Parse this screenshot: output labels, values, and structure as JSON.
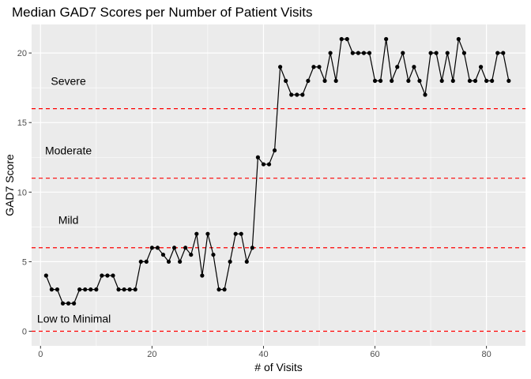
{
  "chart_data": {
    "type": "line",
    "title": "Median GAD7 Scores per Number of Patient Visits",
    "xlabel": "# of Visits",
    "ylabel": "GAD7 Score",
    "xlim": [
      -1.6,
      87
    ],
    "ylim": [
      -1.05,
      22.05
    ],
    "xticks": [
      0,
      20,
      40,
      60,
      80
    ],
    "yticks": [
      0,
      5,
      10,
      15,
      20
    ],
    "grid": true,
    "legend": "none",
    "colors": {
      "panel": "#ebebeb",
      "grid": "#ffffff",
      "line": "#000000",
      "points": "#000000",
      "threshold": "#ff0000"
    },
    "thresholds": [
      0,
      6,
      11,
      16
    ],
    "zone_labels": [
      {
        "text": "Severe",
        "x": 5,
        "y": 18
      },
      {
        "text": "Moderate",
        "x": 5,
        "y": 13
      },
      {
        "text": "Mild",
        "x": 5,
        "y": 8
      },
      {
        "text": "Low to Minimal",
        "x": 6,
        "y": 0.9
      }
    ],
    "series": [
      {
        "x": [
          1,
          2,
          3,
          4,
          5,
          6,
          7,
          8,
          9,
          10,
          11,
          12,
          13,
          14,
          15,
          16,
          17,
          18,
          19,
          20,
          21,
          22,
          23,
          24,
          25,
          26,
          27,
          28,
          29,
          30,
          31,
          32,
          33,
          34,
          35,
          36,
          37,
          38,
          39,
          40,
          41,
          42,
          43,
          44,
          45,
          46,
          47,
          48,
          49,
          50,
          51,
          52,
          53,
          54,
          55,
          56,
          57,
          58,
          59,
          60,
          61,
          62,
          63,
          64,
          65,
          66,
          67,
          68,
          69,
          70,
          71,
          72,
          73,
          74,
          75,
          76,
          77,
          78,
          79,
          80,
          81,
          82,
          83,
          84
        ],
        "y": [
          4,
          3,
          3,
          2,
          2,
          2,
          3,
          3,
          3,
          3,
          4,
          4,
          4,
          3,
          3,
          3,
          3,
          5,
          5,
          6,
          6,
          5.5,
          5,
          6,
          5,
          6,
          5.5,
          7,
          4,
          7,
          5.5,
          3,
          3,
          5,
          7,
          7,
          5,
          6,
          12.5,
          12,
          12,
          13,
          19,
          18,
          17,
          17,
          17,
          18,
          19,
          19,
          18,
          20,
          18,
          21,
          21,
          20,
          20,
          20,
          20,
          18,
          18,
          21,
          18,
          19,
          20,
          18,
          19,
          18,
          17,
          20,
          20,
          18,
          20,
          18,
          21,
          20,
          18,
          18,
          19,
          18,
          18,
          20,
          20,
          18
        ]
      }
    ]
  }
}
